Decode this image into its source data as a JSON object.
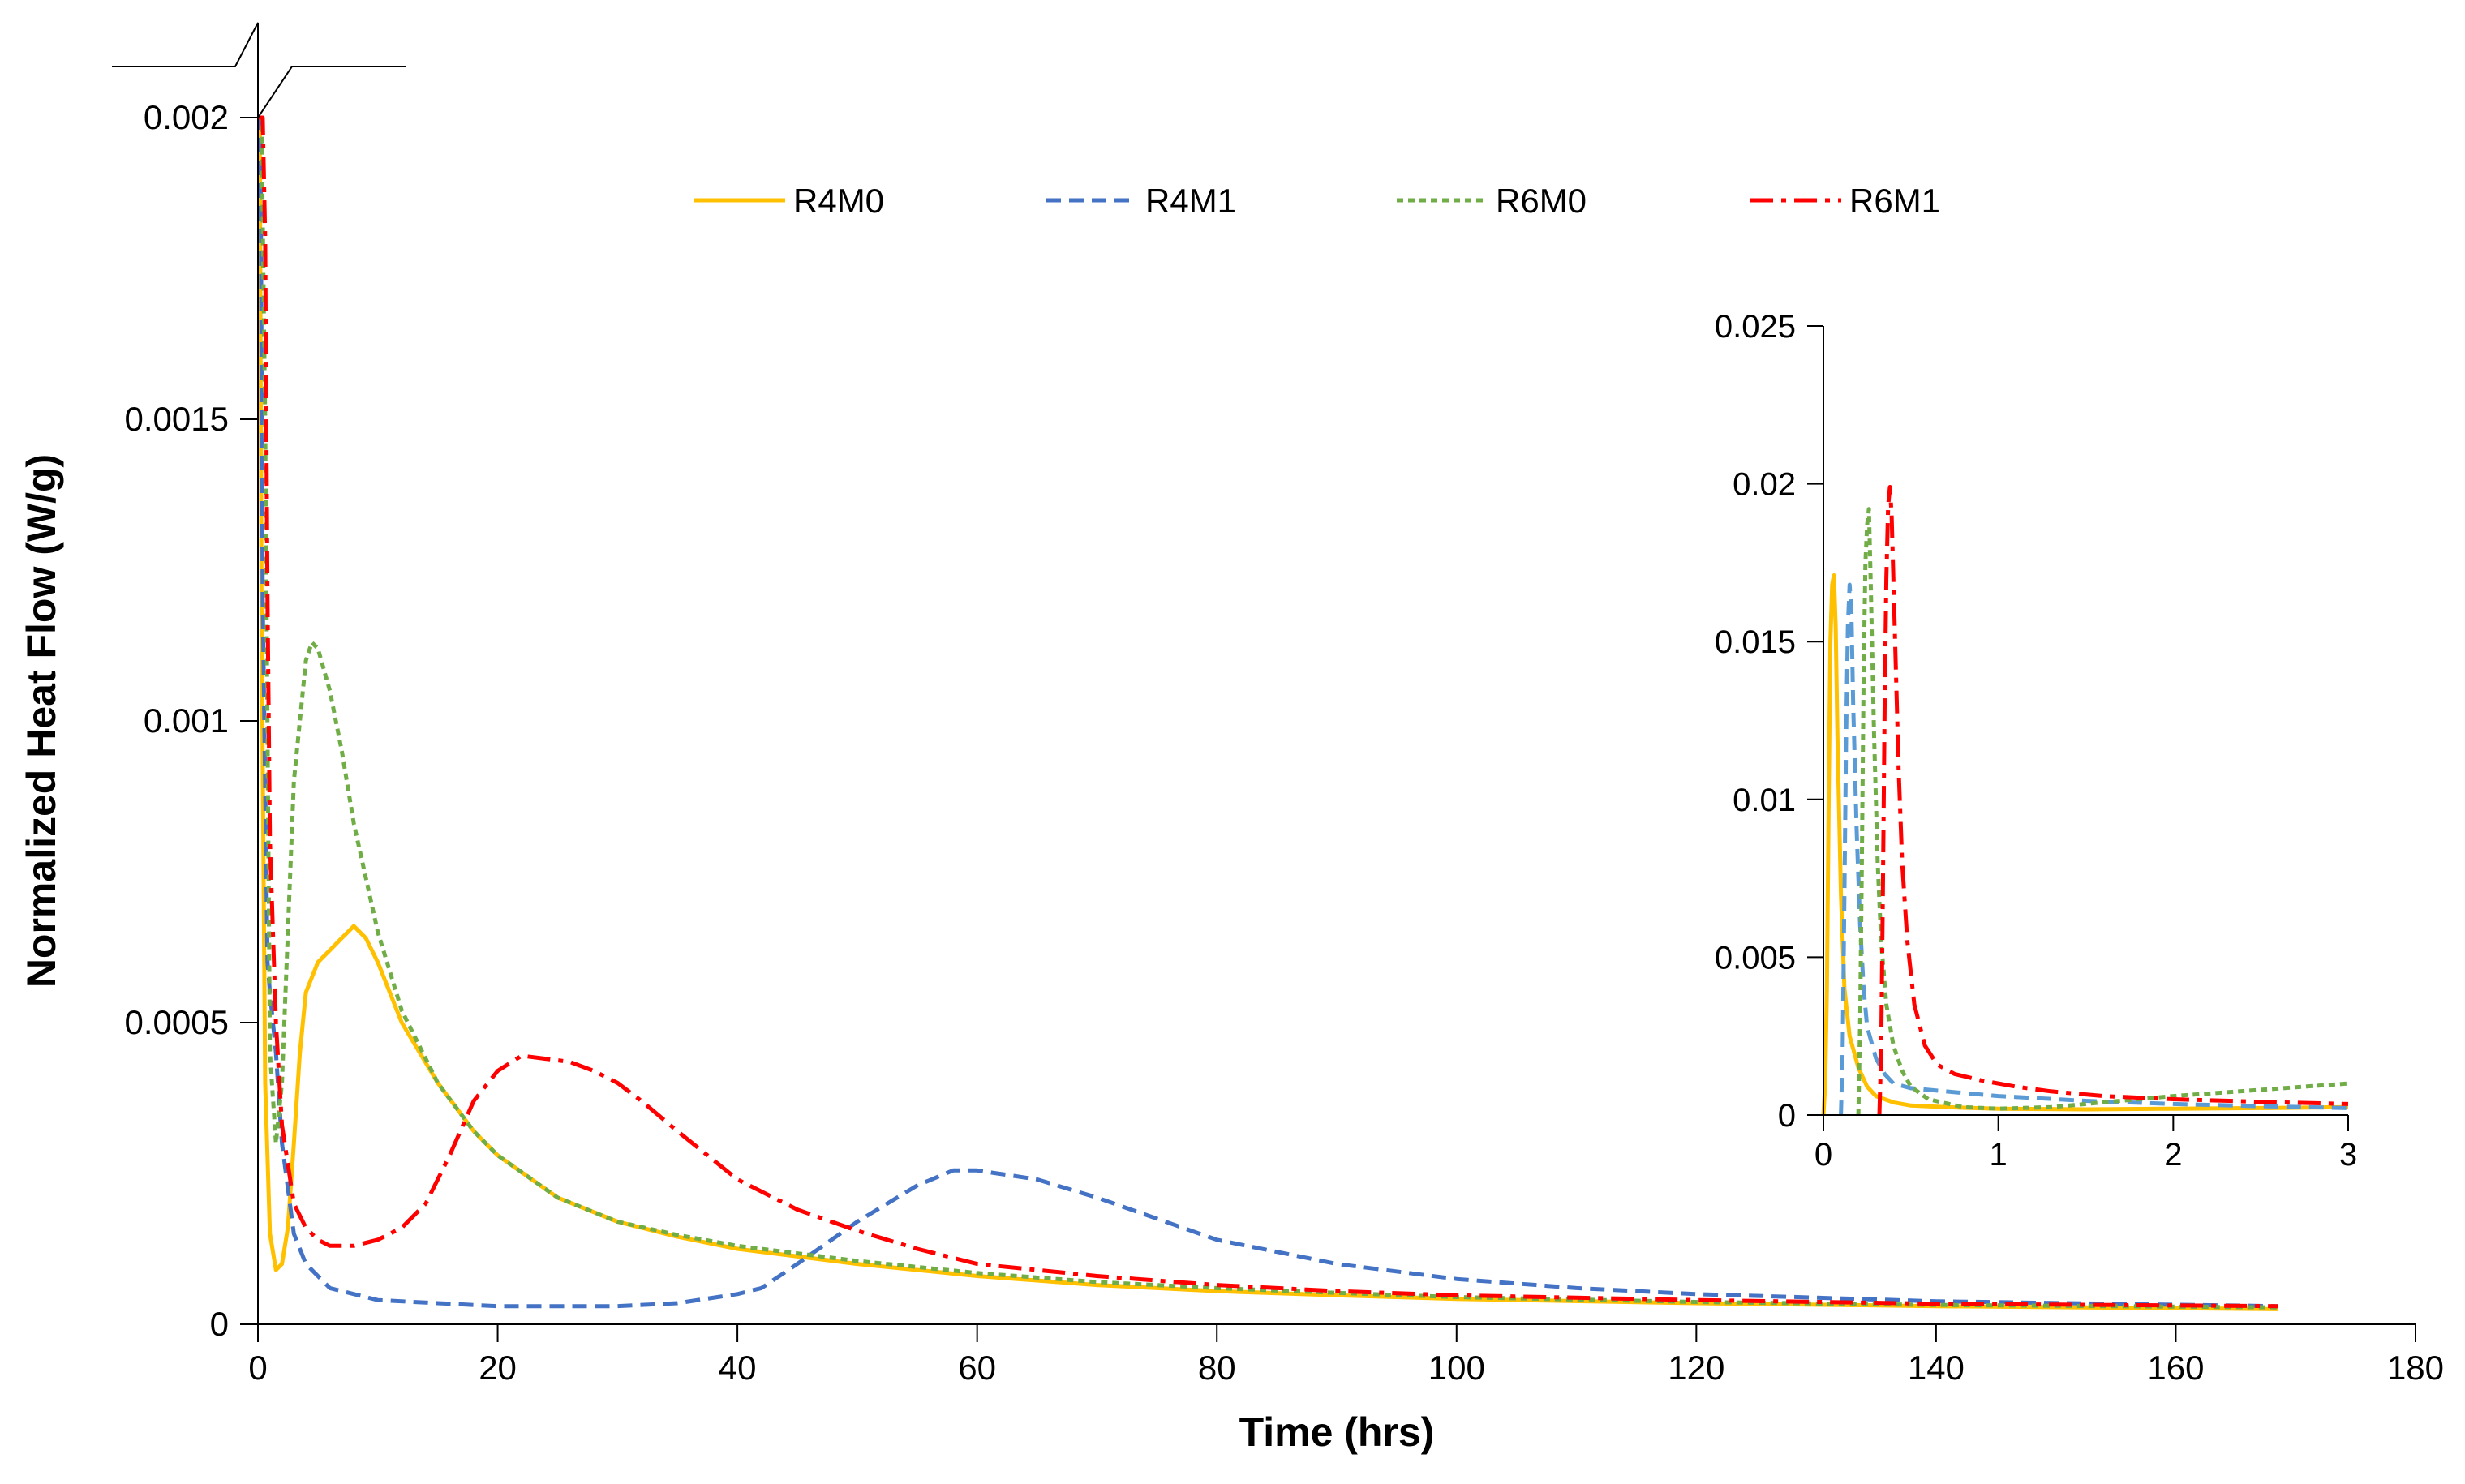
{
  "chart_data": [
    {
      "type": "line",
      "name": "main",
      "xlabel": "Time (hrs)",
      "ylabel": "Normalized Heat Flow (W/g)",
      "xlim": [
        0,
        180
      ],
      "ylim": [
        0,
        0.002
      ],
      "xticks": [
        0,
        20,
        40,
        60,
        80,
        100,
        120,
        140,
        160,
        180
      ],
      "xtick_labels": [
        "0",
        "20",
        "40",
        "60",
        "80",
        "100",
        "120",
        "140",
        "160",
        "180"
      ],
      "yticks": [
        0,
        0.0005,
        0.001,
        0.0015,
        0.002
      ],
      "ytick_labels": [
        "0",
        "0.0005",
        "0.001",
        "0.0015",
        "0.002"
      ],
      "axis_break": "top of y-axis",
      "legend_position": "top",
      "series": [
        {
          "name": "R4M0",
          "color": "#FFC000",
          "style": "solid",
          "points": [
            [
              0,
              0.002
            ],
            [
              0.15,
              0.002
            ],
            [
              0.3,
              0.0012
            ],
            [
              0.6,
              0.0004
            ],
            [
              1.0,
              0.00015
            ],
            [
              1.5,
              9e-05
            ],
            [
              2.0,
              0.0001
            ],
            [
              2.5,
              0.00016
            ],
            [
              3,
              0.0003
            ],
            [
              3.5,
              0.00045
            ],
            [
              4,
              0.00055
            ],
            [
              5,
              0.0006
            ],
            [
              6,
              0.00062
            ],
            [
              7,
              0.00064
            ],
            [
              8,
              0.00066
            ],
            [
              9,
              0.00064
            ],
            [
              10,
              0.0006
            ],
            [
              12,
              0.0005
            ],
            [
              15,
              0.0004
            ],
            [
              18,
              0.00032
            ],
            [
              20,
              0.00028
            ],
            [
              25,
              0.00021
            ],
            [
              30,
              0.00017
            ],
            [
              35,
              0.000145
            ],
            [
              40,
              0.000125
            ],
            [
              50,
              0.0001
            ],
            [
              60,
              8e-05
            ],
            [
              70,
              6.5e-05
            ],
            [
              80,
              5.5e-05
            ],
            [
              90,
              4.8e-05
            ],
            [
              100,
              4.2e-05
            ],
            [
              120,
              3.5e-05
            ],
            [
              140,
              3e-05
            ],
            [
              168.5,
              2.5e-05
            ]
          ]
        },
        {
          "name": "R4M1",
          "color": "#4472C4",
          "style": "dashed",
          "points": [
            [
              0,
              0.002
            ],
            [
              0.2,
              0.002
            ],
            [
              0.4,
              0.0012
            ],
            [
              0.8,
              0.0006
            ],
            [
              1.0,
              0.00055
            ],
            [
              1.5,
              0.00045
            ],
            [
              2,
              0.0003
            ],
            [
              3,
              0.00015
            ],
            [
              4,
              0.0001
            ],
            [
              6,
              6e-05
            ],
            [
              10,
              4e-05
            ],
            [
              15,
              3.5e-05
            ],
            [
              20,
              3e-05
            ],
            [
              25,
              3e-05
            ],
            [
              30,
              3e-05
            ],
            [
              35,
              3.5e-05
            ],
            [
              40,
              5e-05
            ],
            [
              42,
              6e-05
            ],
            [
              45,
              0.0001
            ],
            [
              50,
              0.00017
            ],
            [
              55,
              0.00023
            ],
            [
              58,
              0.000255
            ],
            [
              60,
              0.000255
            ],
            [
              65,
              0.00024
            ],
            [
              70,
              0.00021
            ],
            [
              75,
              0.000175
            ],
            [
              80,
              0.00014
            ],
            [
              85,
              0.00012
            ],
            [
              90,
              0.0001
            ],
            [
              100,
              7.5e-05
            ],
            [
              110,
              6e-05
            ],
            [
              120,
              5e-05
            ],
            [
              140,
              3.8e-05
            ],
            [
              168.5,
              3e-05
            ]
          ]
        },
        {
          "name": "R6M0",
          "color": "#70AD47",
          "style": "dotted",
          "points": [
            [
              0,
              0.002
            ],
            [
              0.3,
              0.002
            ],
            [
              0.6,
              0.0015
            ],
            [
              1.0,
              0.00045
            ],
            [
              1.5,
              0.0003
            ],
            [
              2,
              0.0004
            ],
            [
              2.5,
              0.00065
            ],
            [
              3,
              0.0009
            ],
            [
              4,
              0.0011
            ],
            [
              4.5,
              0.00113
            ],
            [
              5,
              0.00112
            ],
            [
              6,
              0.00105
            ],
            [
              7,
              0.00095
            ],
            [
              8,
              0.00083
            ],
            [
              10,
              0.00065
            ],
            [
              12,
              0.00052
            ],
            [
              15,
              0.0004
            ],
            [
              18,
              0.00032
            ],
            [
              20,
              0.00028
            ],
            [
              25,
              0.00021
            ],
            [
              30,
              0.00017
            ],
            [
              35,
              0.000148
            ],
            [
              40,
              0.00013
            ],
            [
              50,
              0.000105
            ],
            [
              60,
              8.5e-05
            ],
            [
              70,
              7e-05
            ],
            [
              80,
              6e-05
            ],
            [
              90,
              5.2e-05
            ],
            [
              100,
              4.5e-05
            ],
            [
              120,
              3.7e-05
            ],
            [
              140,
              3.2e-05
            ],
            [
              168.5,
              2.8e-05
            ]
          ]
        },
        {
          "name": "R6M1",
          "color": "#FF0000",
          "style": "dash-dot",
          "points": [
            [
              0,
              0.002
            ],
            [
              0.4,
              0.002
            ],
            [
              0.6,
              0.0018
            ],
            [
              0.8,
              0.0012
            ],
            [
              1.0,
              0.0008
            ],
            [
              1.5,
              0.0005
            ],
            [
              2,
              0.00033
            ],
            [
              3,
              0.0002
            ],
            [
              4,
              0.00016
            ],
            [
              5,
              0.00014
            ],
            [
              6,
              0.00013
            ],
            [
              8,
              0.00013
            ],
            [
              10,
              0.00014
            ],
            [
              12,
              0.00016
            ],
            [
              14,
              0.0002
            ],
            [
              16,
              0.00028
            ],
            [
              18,
              0.00037
            ],
            [
              20,
              0.00042
            ],
            [
              22,
              0.000445
            ],
            [
              24,
              0.00044
            ],
            [
              26,
              0.000435
            ],
            [
              28,
              0.00042
            ],
            [
              30,
              0.0004
            ],
            [
              32,
              0.00037
            ],
            [
              35,
              0.00032
            ],
            [
              40,
              0.00024
            ],
            [
              45,
              0.00019
            ],
            [
              50,
              0.000155
            ],
            [
              55,
              0.000125
            ],
            [
              60,
              0.0001
            ],
            [
              70,
              8e-05
            ],
            [
              80,
              6.5e-05
            ],
            [
              90,
              5.5e-05
            ],
            [
              100,
              4.8e-05
            ],
            [
              120,
              4e-05
            ],
            [
              140,
              3.4e-05
            ],
            [
              168.5,
              3e-05
            ]
          ]
        }
      ]
    },
    {
      "type": "line",
      "name": "inset",
      "xlabel": "",
      "ylabel": "",
      "xlim": [
        0,
        3
      ],
      "ylim": [
        0,
        0.025
      ],
      "xticks": [
        0,
        1,
        2,
        3
      ],
      "xtick_labels": [
        "0",
        "1",
        "2",
        "3"
      ],
      "yticks": [
        0,
        0.005,
        0.01,
        0.015,
        0.02,
        0.025
      ],
      "ytick_labels": [
        "0",
        "0.005",
        "0.01",
        "0.015",
        "0.02",
        "0.025"
      ],
      "series": [
        {
          "name": "R4M0",
          "color": "#FFC000",
          "style": "solid",
          "points": [
            [
              0,
              0
            ],
            [
              0.01,
              0.001
            ],
            [
              0.02,
              0.004
            ],
            [
              0.03,
              0.01
            ],
            [
              0.04,
              0.015
            ],
            [
              0.05,
              0.0168
            ],
            [
              0.06,
              0.0171
            ],
            [
              0.07,
              0.0155
            ],
            [
              0.08,
              0.012
            ],
            [
              0.1,
              0.007
            ],
            [
              0.12,
              0.004
            ],
            [
              0.15,
              0.0025
            ],
            [
              0.2,
              0.0015
            ],
            [
              0.25,
              0.0009
            ],
            [
              0.3,
              0.0006
            ],
            [
              0.4,
              0.0004
            ],
            [
              0.5,
              0.0003
            ],
            [
              0.7,
              0.00025
            ],
            [
              1.0,
              0.0002
            ],
            [
              1.5,
              0.00018
            ],
            [
              2.0,
              0.0002
            ],
            [
              2.5,
              0.00022
            ],
            [
              3.0,
              0.00025
            ]
          ]
        },
        {
          "name": "R4M1",
          "color": "#5B9BD5",
          "style": "dashed",
          "points": [
            [
              0.1,
              0
            ],
            [
              0.11,
              0.002
            ],
            [
              0.12,
              0.007
            ],
            [
              0.13,
              0.012
            ],
            [
              0.14,
              0.0155
            ],
            [
              0.15,
              0.0168
            ],
            [
              0.16,
              0.016
            ],
            [
              0.17,
              0.013
            ],
            [
              0.19,
              0.009
            ],
            [
              0.21,
              0.006
            ],
            [
              0.23,
              0.004
            ],
            [
              0.25,
              0.0028
            ],
            [
              0.3,
              0.0018
            ],
            [
              0.35,
              0.0013
            ],
            [
              0.4,
              0.001
            ],
            [
              0.5,
              0.00085
            ],
            [
              0.6,
              0.0008
            ],
            [
              0.8,
              0.0007
            ],
            [
              1.0,
              0.0006
            ],
            [
              1.5,
              0.00045
            ],
            [
              2.0,
              0.00035
            ],
            [
              2.5,
              0.00028
            ],
            [
              3.0,
              0.00022
            ]
          ]
        },
        {
          "name": "R6M0",
          "color": "#70AD47",
          "style": "dotted",
          "points": [
            [
              0.2,
              0
            ],
            [
              0.21,
              0.003
            ],
            [
              0.22,
              0.008
            ],
            [
              0.23,
              0.014
            ],
            [
              0.24,
              0.0175
            ],
            [
              0.25,
              0.0187
            ],
            [
              0.26,
              0.0192
            ],
            [
              0.27,
              0.017
            ],
            [
              0.29,
              0.012
            ],
            [
              0.31,
              0.008
            ],
            [
              0.33,
              0.0055
            ],
            [
              0.36,
              0.0035
            ],
            [
              0.4,
              0.0022
            ],
            [
              0.45,
              0.0014
            ],
            [
              0.5,
              0.0009
            ],
            [
              0.6,
              0.0005
            ],
            [
              0.8,
              0.00025
            ],
            [
              1.0,
              0.0002
            ],
            [
              1.3,
              0.00025
            ],
            [
              1.6,
              0.0004
            ],
            [
              2.0,
              0.0006
            ],
            [
              2.5,
              0.0008
            ],
            [
              3.0,
              0.001
            ]
          ]
        },
        {
          "name": "R6M1",
          "color": "#FF0000",
          "style": "dash-dot",
          "points": [
            [
              0.32,
              0
            ],
            [
              0.33,
              0.002
            ],
            [
              0.34,
              0.007
            ],
            [
              0.35,
              0.013
            ],
            [
              0.36,
              0.017
            ],
            [
              0.37,
              0.0193
            ],
            [
              0.38,
              0.0199
            ],
            [
              0.39,
              0.019
            ],
            [
              0.41,
              0.015
            ],
            [
              0.43,
              0.011
            ],
            [
              0.45,
              0.008
            ],
            [
              0.48,
              0.0055
            ],
            [
              0.52,
              0.0035
            ],
            [
              0.58,
              0.0022
            ],
            [
              0.65,
              0.0016
            ],
            [
              0.75,
              0.0013
            ],
            [
              0.9,
              0.0011
            ],
            [
              1.1,
              0.0009
            ],
            [
              1.3,
              0.00075
            ],
            [
              1.6,
              0.0006
            ],
            [
              2.0,
              0.0005
            ],
            [
              2.5,
              0.00042
            ],
            [
              3.0,
              0.00035
            ]
          ]
        }
      ]
    }
  ]
}
